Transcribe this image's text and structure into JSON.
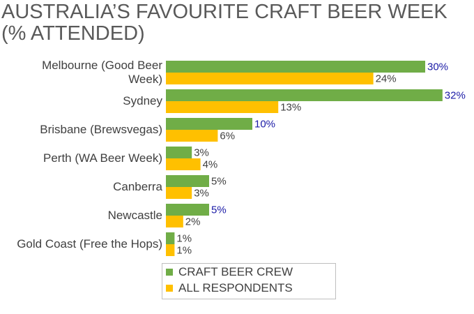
{
  "chart_data": {
    "type": "hbar",
    "title": "AUSTRALIA’S FAVOURITE CRAFT BEER WEEK (% ATTENDED)",
    "categories": [
      "Melbourne (Good Beer Week)",
      "Sydney",
      "Brisbane (Brewsvegas)",
      "Perth (WA Beer Week)",
      "Canberra",
      "Newcastle",
      "Gold Coast (Free the Hops)"
    ],
    "series": [
      {
        "name": "CRAFT BEER CREW",
        "color": "#70ad47",
        "values": [
          30,
          32,
          10,
          3,
          5,
          5,
          1
        ],
        "value_labels": [
          "30%",
          "32%",
          "10%",
          "3%",
          "5%",
          "5%",
          "1%"
        ],
        "value_label_colors": [
          "#1a1aa6",
          "#1a1aa6",
          "#1a1aa6",
          "#404040",
          "#404040",
          "#1a1aa6",
          "#404040"
        ]
      },
      {
        "name": "ALL RESPONDENTS",
        "color": "#ffc000",
        "values": [
          24,
          13,
          6,
          4,
          3,
          2,
          1
        ],
        "value_labels": [
          "24%",
          "13%",
          "6%",
          "4%",
          "3%",
          "2%",
          "1%"
        ],
        "value_label_colors": [
          "#404040",
          "#404040",
          "#404040",
          "#404040",
          "#404040",
          "#404040",
          "#404040"
        ]
      }
    ],
    "xlim": [
      0,
      35
    ],
    "legend": "bottom"
  }
}
